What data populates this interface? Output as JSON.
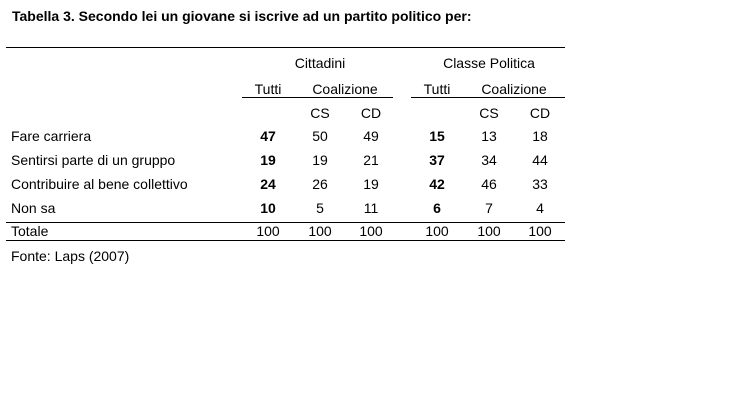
{
  "title": "Tabella 3. Secondo lei un giovane si iscrive ad un partito politico per:",
  "groups": [
    {
      "label": "Cittadini",
      "sub_all": "Tutti",
      "sub_coal": "Coalizione",
      "cs": "CS",
      "cd": "CD"
    },
    {
      "label": "Classe Politica",
      "sub_all": "Tutti",
      "sub_coal": "Coalizione",
      "cs": "CS",
      "cd": "CD"
    }
  ],
  "rows": [
    {
      "label": "Fare carriera",
      "values": [
        "47",
        "50",
        "49",
        "15",
        "13",
        "18"
      ]
    },
    {
      "label": "Sentirsi parte di un gruppo",
      "values": [
        "19",
        "19",
        "21",
        "37",
        "34",
        "44"
      ]
    },
    {
      "label": "Contribuire al bene collettivo",
      "values": [
        "24",
        "26",
        "19",
        "42",
        "46",
        "33"
      ]
    },
    {
      "label": "Non sa",
      "values": [
        "10",
        "5",
        "11",
        "6",
        "7",
        "4"
      ]
    },
    {
      "label": "Totale",
      "values": [
        "100",
        "100",
        "100",
        "100",
        "100",
        "100"
      ]
    }
  ],
  "source": "Fonte: Laps (2007)"
}
